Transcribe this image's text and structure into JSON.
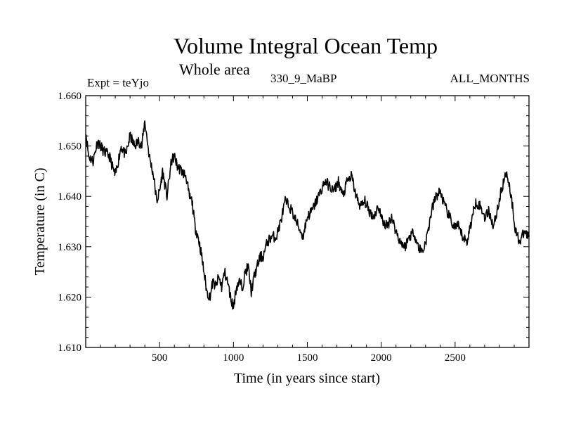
{
  "title": "Volume Integral Ocean Temp",
  "subtitle": "Whole area",
  "experiment": "Expt = teYjo",
  "run_label": "330_9_MaBP",
  "months_label": "ALL_MONTHS",
  "chart_data": {
    "type": "line",
    "title": "Volume Integral Ocean Temp",
    "xlabel": "Time (in years since start)",
    "ylabel": "Temperature (in C)",
    "xlim": [
      0,
      3000
    ],
    "ylim": [
      1.61,
      1.66
    ],
    "xticks": [
      500,
      1000,
      1500,
      2000,
      2500
    ],
    "xtick_labels": [
      "500",
      "1000",
      "1500",
      "2000",
      "2500"
    ],
    "yticks": [
      1.61,
      1.62,
      1.63,
      1.64,
      1.65,
      1.66
    ],
    "ytick_labels": [
      "1.610",
      "1.620",
      "1.630",
      "1.640",
      "1.650",
      "1.660"
    ],
    "grid": false,
    "series": [
      {
        "name": "Volume integral ocean temperature",
        "x": [
          0,
          20,
          50,
          80,
          120,
          160,
          200,
          240,
          270,
          300,
          330,
          360,
          380,
          400,
          430,
          460,
          480,
          500,
          520,
          550,
          580,
          600,
          620,
          650,
          680,
          700,
          720,
          740,
          760,
          780,
          800,
          820,
          840,
          860,
          880,
          900,
          920,
          940,
          960,
          980,
          1000,
          1020,
          1040,
          1060,
          1080,
          1100,
          1120,
          1140,
          1160,
          1180,
          1200,
          1230,
          1260,
          1290,
          1320,
          1350,
          1380,
          1410,
          1440,
          1470,
          1500,
          1530,
          1560,
          1590,
          1620,
          1650,
          1680,
          1710,
          1740,
          1770,
          1800,
          1830,
          1860,
          1890,
          1920,
          1950,
          1980,
          2010,
          2040,
          2070,
          2100,
          2130,
          2160,
          2190,
          2220,
          2250,
          2280,
          2310,
          2340,
          2370,
          2400,
          2430,
          2460,
          2490,
          2520,
          2550,
          2580,
          2610,
          2640,
          2670,
          2700,
          2730,
          2760,
          2790,
          2820,
          2850,
          2880,
          2910,
          2940,
          2970,
          3000
        ],
        "values": [
          1.653,
          1.648,
          1.647,
          1.651,
          1.649,
          1.648,
          1.644,
          1.65,
          1.648,
          1.652,
          1.65,
          1.651,
          1.65,
          1.655,
          1.648,
          1.644,
          1.639,
          1.641,
          1.645,
          1.64,
          1.647,
          1.648,
          1.646,
          1.645,
          1.644,
          1.64,
          1.639,
          1.634,
          1.632,
          1.629,
          1.625,
          1.621,
          1.62,
          1.623,
          1.622,
          1.624,
          1.622,
          1.625,
          1.623,
          1.62,
          1.618,
          1.622,
          1.623,
          1.622,
          1.625,
          1.626,
          1.621,
          1.624,
          1.626,
          1.628,
          1.628,
          1.631,
          1.632,
          1.632,
          1.635,
          1.639,
          1.638,
          1.636,
          1.634,
          1.632,
          1.636,
          1.637,
          1.639,
          1.641,
          1.643,
          1.642,
          1.641,
          1.643,
          1.64,
          1.643,
          1.644,
          1.64,
          1.638,
          1.639,
          1.637,
          1.636,
          1.638,
          1.635,
          1.634,
          1.636,
          1.633,
          1.631,
          1.63,
          1.632,
          1.633,
          1.63,
          1.629,
          1.632,
          1.637,
          1.64,
          1.641,
          1.638,
          1.636,
          1.634,
          1.634,
          1.632,
          1.631,
          1.635,
          1.639,
          1.638,
          1.636,
          1.637,
          1.634,
          1.638,
          1.642,
          1.645,
          1.64,
          1.633,
          1.631,
          1.633,
          1.632
        ]
      }
    ]
  }
}
